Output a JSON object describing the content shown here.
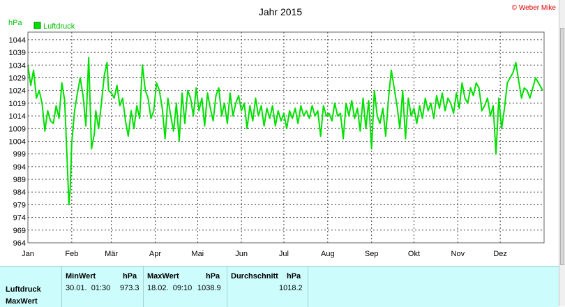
{
  "header": {
    "title": "Jahr 2015",
    "copyright": "© Weber Mike"
  },
  "colors": {
    "series": "#00e000",
    "copyright": "#e00000",
    "grid": "#505050",
    "stats_bg": "#ccfcfc"
  },
  "chart_data": {
    "type": "line",
    "title": "Jahr 2015",
    "ylabel": "hPa",
    "xlabel": "",
    "ylim": [
      964,
      1047
    ],
    "yticks": [
      964,
      969,
      974,
      979,
      984,
      989,
      994,
      999,
      1004,
      1009,
      1014,
      1019,
      1024,
      1029,
      1034,
      1039,
      1044
    ],
    "xticks": [
      "Jan",
      "Feb",
      "Mär",
      "Apr",
      "Mai",
      "Jun",
      "Jul",
      "Aug",
      "Sep",
      "Okt",
      "Nov",
      "Dez"
    ],
    "legend": "top-left",
    "grid": true,
    "series": [
      {
        "name": "Luftdruck",
        "x_day": [
          0,
          2,
          4,
          6,
          8,
          10,
          12,
          14,
          16,
          18,
          20,
          22,
          24,
          26,
          28,
          29,
          30,
          31,
          33,
          35,
          37,
          39,
          41,
          43,
          45,
          47,
          48,
          50,
          52,
          54,
          56,
          57,
          59,
          61,
          63,
          65,
          67,
          69,
          71,
          73,
          75,
          77,
          79,
          81,
          83,
          85,
          87,
          89,
          91,
          93,
          95,
          97,
          99,
          101,
          103,
          105,
          107,
          109,
          111,
          113,
          115,
          117,
          119,
          121,
          123,
          125,
          127,
          129,
          131,
          133,
          135,
          137,
          139,
          141,
          143,
          145,
          147,
          149,
          151,
          153,
          155,
          157,
          159,
          161,
          163,
          165,
          167,
          169,
          171,
          173,
          175,
          177,
          179,
          181,
          183,
          185,
          187,
          189,
          191,
          193,
          195,
          197,
          199,
          201,
          203,
          205,
          207,
          209,
          211,
          213,
          215,
          217,
          219,
          221,
          223,
          225,
          227,
          229,
          231,
          233,
          235,
          237,
          239,
          241,
          243,
          245,
          247,
          249,
          251,
          253,
          255,
          257,
          259,
          261,
          263,
          265,
          267,
          269,
          271,
          273,
          275,
          277,
          279,
          281,
          283,
          285,
          287,
          289,
          291,
          293,
          295,
          297,
          299,
          301,
          303,
          305,
          307,
          309,
          311,
          313,
          315,
          317,
          319,
          321,
          323,
          325,
          327,
          329,
          331,
          333,
          335,
          337,
          339,
          341,
          343,
          345,
          347,
          349,
          351,
          353,
          355,
          357,
          359,
          361,
          364
        ],
        "values": [
          1034,
          1026,
          1032,
          1021,
          1024,
          1019,
          1008,
          1016,
          1012,
          1011,
          1018,
          1013,
          1027,
          1020,
          993,
          979,
          986,
          1003,
          1016,
          1023,
          1029,
          1022,
          1010,
          1037,
          1001,
          1007,
          1016,
          1009,
          1019,
          1030,
          1035,
          1024,
          1023,
          1021,
          1026,
          1018,
          1021,
          1012,
          1006,
          1016,
          1009,
          1018,
          1013,
          1034,
          1024,
          1021,
          1013,
          1016,
          1027,
          1024,
          1017,
          1005,
          1021,
          1014,
          1008,
          1019,
          1004,
          1023,
          1011,
          1024,
          1021,
          1014,
          1025,
          1016,
          1021,
          1010,
          1023,
          1017,
          1012,
          1022,
          1025,
          1014,
          1019,
          1011,
          1023,
          1014,
          1019,
          1022,
          1016,
          1019,
          1009,
          1018,
          1012,
          1021,
          1014,
          1018,
          1010,
          1017,
          1013,
          1018,
          1010,
          1016,
          1012,
          1015,
          1009,
          1016,
          1013,
          1017,
          1011,
          1018,
          1014,
          1016,
          1013,
          1018,
          1014,
          1016,
          1006,
          1018,
          1014,
          1015,
          1012,
          1019,
          1014,
          1015,
          1005,
          1019,
          1014,
          1020,
          1013,
          1017,
          1008,
          1021,
          1009,
          1020,
          1001,
          1024,
          1014,
          1011,
          1017,
          1006,
          1021,
          1032,
          1025,
          1018,
          1009,
          1024,
          1005,
          1021,
          1014,
          1017,
          1011,
          1018,
          1013,
          1021,
          1016,
          1019,
          1013,
          1022,
          1017,
          1023,
          1016,
          1021,
          1019,
          1015,
          1023,
          1017,
          1027,
          1021,
          1019,
          1025,
          1022,
          1027,
          1025,
          1016,
          1018,
          1021,
          1014,
          1018,
          999,
          1021,
          1009,
          1017,
          1027,
          1029,
          1031,
          1035,
          1028,
          1021,
          1025,
          1024,
          1021,
          1025,
          1029,
          1027,
          1024
        ]
      }
    ]
  },
  "stats": {
    "row_labels": [
      "Luftdruck",
      "MaxWert"
    ],
    "min": {
      "header": "MinWert",
      "unit": "hPa",
      "time": "30.01.  01:30",
      "value": "973.3"
    },
    "max": {
      "header": "MaxWert",
      "unit": "hPa",
      "time": "18.02.  09:10",
      "value": "1038.9"
    },
    "avg": {
      "header": "Durchschnitt",
      "unit": "hPa",
      "value": "1018.2"
    }
  }
}
